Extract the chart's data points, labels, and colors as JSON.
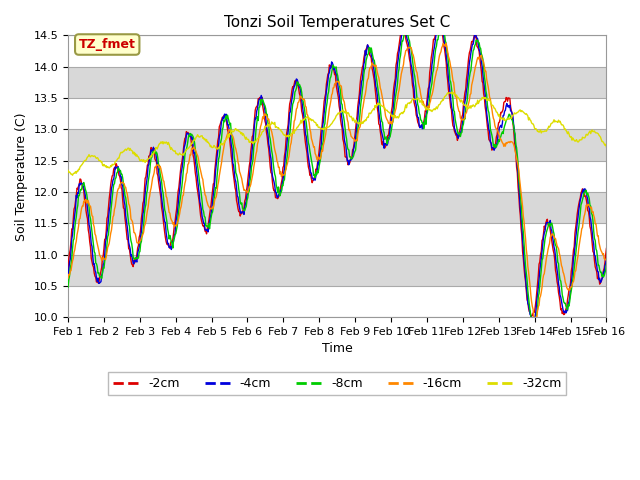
{
  "title": "Tonzi Soil Temperatures Set C",
  "xlabel": "Time",
  "ylabel": "Soil Temperature (C)",
  "ylim": [
    10.0,
    14.5
  ],
  "yticks": [
    10.0,
    10.5,
    11.0,
    11.5,
    12.0,
    12.5,
    13.0,
    13.5,
    14.0,
    14.5
  ],
  "line_colors": {
    "-2cm": "#dd0000",
    "-4cm": "#0000dd",
    "-8cm": "#00cc00",
    "-16cm": "#ff8800",
    "-32cm": "#dddd00"
  },
  "legend_labels": [
    "-2cm",
    "-4cm",
    "-8cm",
    "-16cm",
    "-32cm"
  ],
  "annotation_text": "TZ_fmet",
  "annotation_color": "#cc0000",
  "annotation_bg": "#ffffcc",
  "annotation_border": "#999944",
  "n_points": 720,
  "x_start": 0,
  "x_end": 15,
  "xtick_positions": [
    0,
    1,
    2,
    3,
    4,
    5,
    6,
    7,
    8,
    9,
    10,
    11,
    12,
    13,
    14,
    15
  ],
  "xtick_labels": [
    "Feb 1",
    "Feb 2",
    "Feb 3",
    "Feb 4",
    "Feb 5",
    "Feb 6",
    "Feb 7",
    "Feb 8",
    "Feb 9",
    "Feb 10",
    "Feb 11",
    "Feb 12",
    "Feb 13",
    "Feb 14",
    "Feb 15",
    "Feb 16"
  ]
}
